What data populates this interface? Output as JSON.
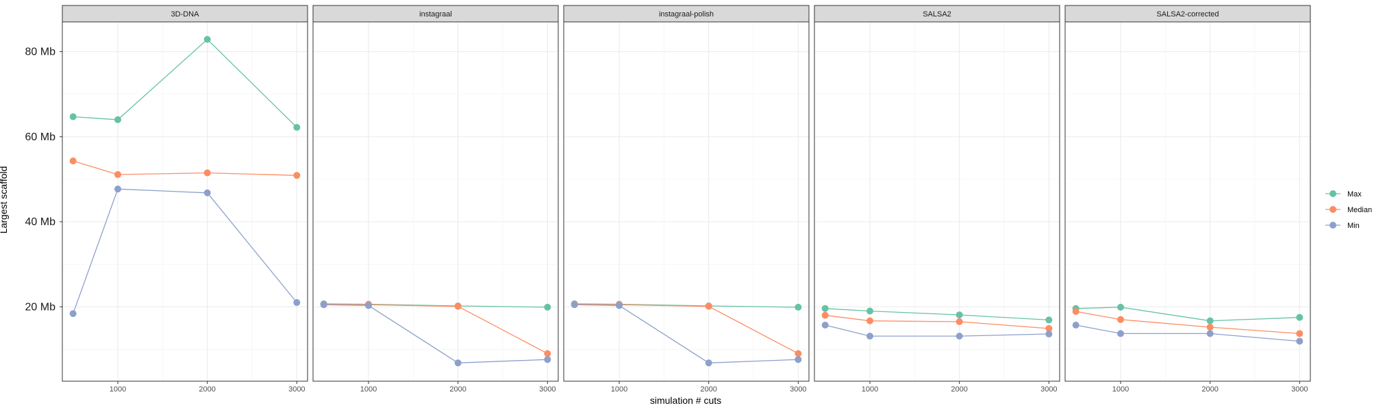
{
  "chart_data": {
    "type": "line",
    "facet_type": "small-multiples",
    "xlabel": "simulation # cuts",
    "ylabel": "Largest scaffold",
    "x_ticks": [
      1000,
      2000,
      3000
    ],
    "xlim": [
      380,
      3120
    ],
    "y_ticks": [
      20,
      40,
      60,
      80
    ],
    "y_tick_labels": [
      "20 Mb",
      "40 Mb",
      "60 Mb",
      "80 Mb"
    ],
    "ylim": [
      2.5,
      87
    ],
    "y_unit": "Mb",
    "grid": true,
    "legend_position": "right",
    "legend": [
      {
        "name": "Max",
        "color": "#66c2a5"
      },
      {
        "name": "Median",
        "color": "#fc8d62"
      },
      {
        "name": "Min",
        "color": "#8da0cb"
      }
    ],
    "x": [
      500,
      1000,
      2000,
      3000
    ],
    "panels": [
      {
        "title": "3D-DNA",
        "series": [
          {
            "name": "Max",
            "values": [
              64.7,
              64.0,
              82.9,
              62.2
            ]
          },
          {
            "name": "Median",
            "values": [
              54.3,
              51.1,
              51.5,
              50.9
            ]
          },
          {
            "name": "Min",
            "values": [
              18.4,
              47.7,
              46.8,
              21.0
            ]
          }
        ]
      },
      {
        "title": "instagraal",
        "series": [
          {
            "name": "Max",
            "values": [
              20.7,
              20.6,
              20.2,
              19.9
            ]
          },
          {
            "name": "Median",
            "values": [
              20.6,
              20.5,
              20.1,
              9.0
            ]
          },
          {
            "name": "Min",
            "values": [
              20.5,
              20.3,
              6.8,
              7.6
            ]
          }
        ]
      },
      {
        "title": "instagraal-polish",
        "series": [
          {
            "name": "Max",
            "values": [
              20.7,
              20.6,
              20.2,
              19.9
            ]
          },
          {
            "name": "Median",
            "values": [
              20.6,
              20.5,
              20.1,
              9.0
            ]
          },
          {
            "name": "Min",
            "values": [
              20.5,
              20.3,
              6.8,
              7.6
            ]
          }
        ]
      },
      {
        "title": "SALSA2",
        "series": [
          {
            "name": "Max",
            "values": [
              19.6,
              19.0,
              18.1,
              16.9
            ]
          },
          {
            "name": "Median",
            "values": [
              18.0,
              16.7,
              16.5,
              14.9
            ]
          },
          {
            "name": "Min",
            "values": [
              15.7,
              13.1,
              13.1,
              13.6
            ]
          }
        ]
      },
      {
        "title": "SALSA2-corrected",
        "series": [
          {
            "name": "Max",
            "values": [
              19.6,
              19.9,
              16.7,
              17.5
            ]
          },
          {
            "name": "Median",
            "values": [
              18.9,
              17.0,
              15.2,
              13.7
            ]
          },
          {
            "name": "Min",
            "values": [
              15.7,
              13.7,
              13.7,
              11.9
            ]
          }
        ]
      }
    ]
  }
}
